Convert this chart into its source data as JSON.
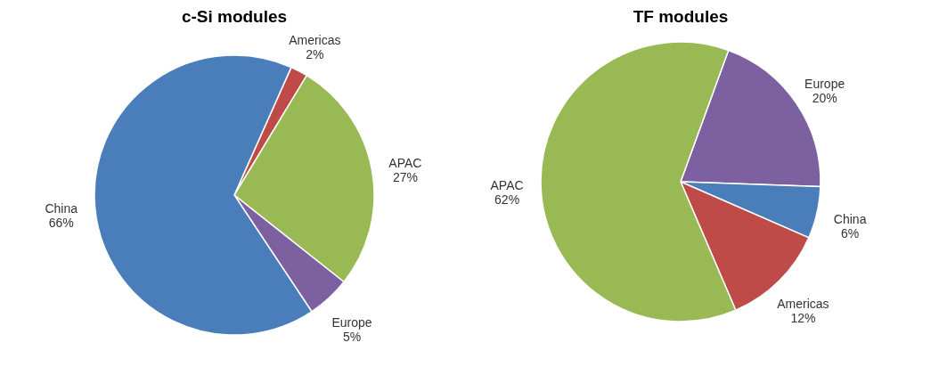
{
  "chart_data": [
    {
      "type": "pie",
      "title": "c-Si modules",
      "categories": [
        "Americas",
        "APAC",
        "Europe",
        "China"
      ],
      "values": [
        2,
        27,
        5,
        66
      ],
      "colors": [
        "#be4b48",
        "#98b954",
        "#7d60a0",
        "#4a7ebb"
      ],
      "value_labels": [
        "2%",
        "27%",
        "5%",
        "66%"
      ]
    },
    {
      "type": "pie",
      "title": "TF modules",
      "categories": [
        "Europe",
        "China",
        "Americas",
        "APAC"
      ],
      "values": [
        20,
        6,
        12,
        62
      ],
      "colors": [
        "#7d60a0",
        "#4a7ebb",
        "#be4b48",
        "#98b954"
      ],
      "value_labels": [
        "20%",
        "6%",
        "12%",
        "62%"
      ]
    }
  ]
}
